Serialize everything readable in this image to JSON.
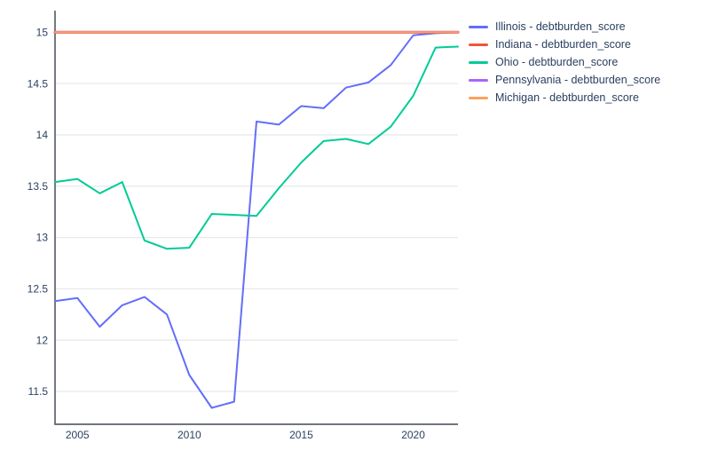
{
  "chart_data": {
    "type": "line",
    "title": "",
    "xlabel": "",
    "ylabel": "",
    "x": [
      2004,
      2005,
      2006,
      2007,
      2008,
      2009,
      2010,
      2011,
      2012,
      2013,
      2014,
      2015,
      2016,
      2017,
      2018,
      2019,
      2020,
      2021,
      2022
    ],
    "series": [
      {
        "name": "Illinois - debtburden_score",
        "color": "#636EFA",
        "values": [
          12.38,
          12.41,
          12.13,
          12.34,
          12.42,
          12.25,
          11.66,
          11.34,
          11.4,
          14.13,
          14.1,
          14.28,
          14.26,
          14.46,
          14.51,
          14.68,
          14.97,
          14.99,
          15.0
        ]
      },
      {
        "name": "Indiana - debtburden_score",
        "color": "#EF553B",
        "values": [
          15,
          15,
          15,
          15,
          15,
          15,
          15,
          15,
          15,
          15,
          15,
          15,
          15,
          15,
          15,
          15,
          15,
          15,
          15
        ]
      },
      {
        "name": "Ohio - debtburden_score",
        "color": "#00CC96",
        "values": [
          13.54,
          13.57,
          13.43,
          13.54,
          12.97,
          12.89,
          12.9,
          13.23,
          13.22,
          13.21,
          13.48,
          13.73,
          13.94,
          13.96,
          13.91,
          14.08,
          14.38,
          14.85,
          14.86
        ]
      },
      {
        "name": "Pennsylvania - debtburden_score",
        "color": "#AB63FA",
        "values": [
          15,
          15,
          15,
          15,
          15,
          15,
          15,
          15,
          15,
          15,
          15,
          15,
          15,
          15,
          15,
          15,
          15,
          15,
          15
        ]
      },
      {
        "name": "Michigan - debtburden_score",
        "color": "#FFA15A",
        "values": [
          15,
          15,
          15,
          15,
          15,
          15,
          15,
          15,
          15,
          15,
          15,
          15,
          15,
          15,
          15,
          15,
          15,
          15,
          15
        ]
      }
    ],
    "x_ticks": [
      2005,
      2010,
      2015,
      2020
    ],
    "y_ticks": [
      11.5,
      12,
      12.5,
      13,
      13.5,
      14,
      14.5,
      15
    ],
    "xlim": [
      2004,
      2022
    ],
    "ylim": [
      11.18,
      15.21
    ],
    "grid": "horizontal-only",
    "legend_position": "right"
  },
  "colors": {
    "background": "#ffffff",
    "grid_line": "#e8e9eb",
    "axis_line": "#5d626c",
    "tick_text": "#2a3f5f",
    "legend_text": "#2a3f5f"
  }
}
